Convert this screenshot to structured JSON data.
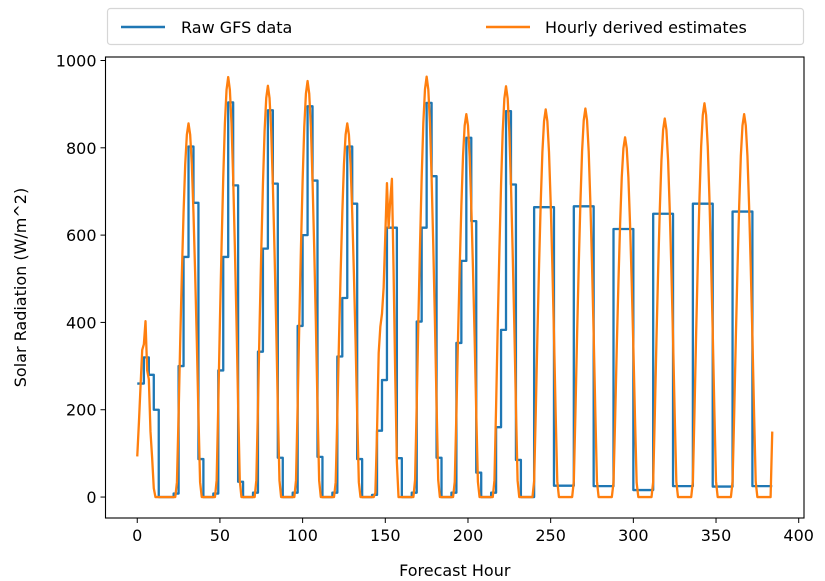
{
  "chart_data": {
    "type": "line",
    "title": "",
    "xlabel": "Forecast Hour",
    "ylabel": "Solar Radiation (W/m^2)",
    "xlim": [
      -19.2,
      403.2
    ],
    "ylim": [
      -48,
      1008
    ],
    "xticks": [
      0,
      50,
      100,
      150,
      200,
      250,
      300,
      350,
      400
    ],
    "yticks": [
      0,
      200,
      400,
      600,
      800,
      1000
    ],
    "grid": false,
    "legend_placement": "top (above axes)",
    "series": [
      {
        "name": "Raw GFS data",
        "color": "#1f77b4",
        "drawstyle": "steps-post",
        "points": [
          [
            0,
            260
          ],
          [
            4,
            320
          ],
          [
            7,
            280
          ],
          [
            10,
            200
          ],
          [
            13,
            0
          ],
          [
            22,
            8
          ],
          [
            25,
            300
          ],
          [
            28,
            550
          ],
          [
            31,
            803
          ],
          [
            34,
            674
          ],
          [
            37,
            87
          ],
          [
            40,
            0
          ],
          [
            46,
            8
          ],
          [
            49,
            290
          ],
          [
            52,
            550
          ],
          [
            55,
            904
          ],
          [
            58,
            714
          ],
          [
            61,
            35
          ],
          [
            64,
            0
          ],
          [
            70,
            10
          ],
          [
            73,
            333
          ],
          [
            76,
            569
          ],
          [
            79,
            886
          ],
          [
            82,
            718
          ],
          [
            85,
            90
          ],
          [
            88,
            0
          ],
          [
            94,
            10
          ],
          [
            97,
            392
          ],
          [
            100,
            600
          ],
          [
            103,
            895
          ],
          [
            106,
            725
          ],
          [
            109,
            92
          ],
          [
            112,
            0
          ],
          [
            118,
            10
          ],
          [
            121,
            322
          ],
          [
            124,
            456
          ],
          [
            127,
            803
          ],
          [
            130,
            672
          ],
          [
            133,
            87
          ],
          [
            136,
            0
          ],
          [
            142,
            5
          ],
          [
            145,
            152
          ],
          [
            148,
            268
          ],
          [
            151,
            617
          ],
          [
            157,
            89
          ],
          [
            160,
            0
          ],
          [
            166,
            10
          ],
          [
            169,
            402
          ],
          [
            172,
            617
          ],
          [
            175,
            903
          ],
          [
            178,
            735
          ],
          [
            181,
            90
          ],
          [
            184,
            0
          ],
          [
            190,
            10
          ],
          [
            193,
            353
          ],
          [
            196,
            541
          ],
          [
            199,
            823
          ],
          [
            202,
            632
          ],
          [
            205,
            56
          ],
          [
            208,
            0
          ],
          [
            214,
            10
          ],
          [
            217,
            160
          ],
          [
            220,
            383
          ],
          [
            223,
            884
          ],
          [
            226,
            716
          ],
          [
            229,
            85
          ],
          [
            232,
            0
          ],
          [
            240,
            664
          ],
          [
            252,
            26
          ],
          [
            264,
            666
          ],
          [
            276,
            25
          ],
          [
            288,
            614
          ],
          [
            300,
            16
          ],
          [
            312,
            649
          ],
          [
            324,
            25
          ],
          [
            336,
            672
          ],
          [
            348,
            24
          ],
          [
            360,
            654
          ],
          [
            372,
            25
          ],
          [
            384,
            25
          ]
        ]
      },
      {
        "name": "Hourly derived estimates",
        "color": "#ff7f0e",
        "x": [
          0,
          1,
          2,
          3,
          4,
          5,
          6,
          7,
          8,
          9,
          10,
          11,
          12,
          13,
          14,
          15,
          16,
          17,
          18,
          19,
          20,
          21,
          22,
          23,
          24,
          25,
          26,
          27,
          28,
          29,
          30,
          31,
          32,
          33,
          34,
          35,
          36,
          37,
          38,
          39,
          40,
          41,
          42,
          43,
          44,
          45,
          46,
          47,
          48,
          49,
          50,
          51,
          52,
          53,
          54,
          55,
          56,
          57,
          58,
          59,
          60,
          61,
          62,
          63,
          64,
          65,
          66,
          67,
          68,
          69,
          70,
          71,
          72,
          73,
          74,
          75,
          76,
          77,
          78,
          79,
          80,
          81,
          82,
          83,
          84,
          85,
          86,
          87,
          88,
          89,
          90,
          91,
          92,
          93,
          94,
          95,
          96,
          97,
          98,
          99,
          100,
          101,
          102,
          103,
          104,
          105,
          106,
          107,
          108,
          109,
          110,
          111,
          112,
          113,
          114,
          115,
          116,
          117,
          118,
          119,
          120,
          121,
          122,
          123,
          124,
          125,
          126,
          127,
          128,
          129,
          130,
          131,
          132,
          133,
          134,
          135,
          136,
          137,
          138,
          139,
          140,
          141,
          142,
          143,
          144,
          145,
          146,
          147,
          148,
          149,
          150,
          151,
          152,
          153,
          154,
          155,
          156,
          157,
          158,
          159,
          160,
          161,
          162,
          163,
          164,
          165,
          166,
          167,
          168,
          169,
          170,
          171,
          172,
          173,
          174,
          175,
          176,
          177,
          178,
          179,
          180,
          181,
          182,
          183,
          184,
          185,
          186,
          187,
          188,
          189,
          190,
          191,
          192,
          193,
          194,
          195,
          196,
          197,
          198,
          199,
          200,
          201,
          202,
          203,
          204,
          205,
          206,
          207,
          208,
          209,
          210,
          211,
          212,
          213,
          214,
          215,
          216,
          217,
          218,
          219,
          220,
          221,
          222,
          223,
          224,
          225,
          226,
          227,
          228,
          229,
          230,
          231,
          232,
          233,
          234,
          235,
          236,
          237,
          238,
          239,
          240,
          241,
          242,
          243,
          244,
          245,
          246,
          247,
          248,
          249,
          250,
          251,
          252,
          253,
          254,
          255,
          256,
          257,
          258,
          259,
          260,
          261,
          262,
          263,
          264,
          265,
          266,
          267,
          268,
          269,
          270,
          271,
          272,
          273,
          274,
          275,
          276,
          277,
          278,
          279,
          280,
          281,
          282,
          283,
          284,
          285,
          286,
          287,
          288,
          289,
          290,
          291,
          292,
          293,
          294,
          295,
          296,
          297,
          298,
          299,
          300,
          301,
          302,
          303,
          304,
          305,
          306,
          307,
          308,
          309,
          310,
          311,
          312,
          313,
          314,
          315,
          316,
          317,
          318,
          319,
          320,
          321,
          322,
          323,
          324,
          325,
          326,
          327,
          328,
          329,
          330,
          331,
          332,
          333,
          334,
          335,
          336,
          337,
          338,
          339,
          340,
          341,
          342,
          343,
          344,
          345,
          346,
          347,
          348,
          349,
          350,
          351,
          352,
          353,
          354,
          355,
          356,
          357,
          358,
          359,
          360,
          361,
          362,
          363,
          364,
          365,
          366,
          367,
          368,
          369,
          370,
          371,
          372,
          373,
          374,
          375,
          376,
          377,
          378,
          379,
          380,
          381,
          382,
          383,
          384
        ],
        "y": [
          93,
          170,
          255,
          337,
          350,
          403,
          290,
          270,
          150,
          90,
          20,
          0,
          0,
          0,
          0,
          0,
          0,
          0,
          0,
          0,
          0,
          0,
          0,
          0,
          34,
          188,
          360,
          514,
          651,
          762,
          830,
          856,
          830,
          762,
          651,
          514,
          360,
          188,
          34,
          0,
          0,
          0,
          0,
          0,
          0,
          0,
          0,
          0,
          38,
          212,
          404,
          577,
          731,
          856,
          933,
          962,
          933,
          856,
          731,
          577,
          404,
          212,
          38,
          0,
          0,
          0,
          0,
          0,
          0,
          0,
          0,
          0,
          38,
          207,
          396,
          565,
          716,
          838,
          914,
          942,
          914,
          838,
          716,
          565,
          396,
          207,
          38,
          0,
          0,
          0,
          0,
          0,
          0,
          0,
          0,
          0,
          38,
          210,
          400,
          572,
          724,
          848,
          924,
          953,
          924,
          848,
          724,
          572,
          400,
          210,
          38,
          0,
          0,
          0,
          0,
          0,
          0,
          0,
          0,
          0,
          34,
          188,
          360,
          514,
          651,
          762,
          830,
          856,
          830,
          762,
          651,
          514,
          360,
          188,
          34,
          0,
          0,
          0,
          0,
          0,
          0,
          0,
          0,
          0,
          10,
          150,
          330,
          390,
          420,
          480,
          600,
          719,
          617,
          680,
          729,
          520,
          280,
          80,
          0,
          0,
          0,
          0,
          0,
          0,
          0,
          0,
          0,
          0,
          39,
          212,
          404,
          578,
          732,
          857,
          934,
          963,
          934,
          857,
          732,
          578,
          404,
          212,
          39,
          0,
          0,
          0,
          0,
          0,
          0,
          0,
          0,
          0,
          35,
          193,
          368,
          526,
          667,
          781,
          851,
          877,
          851,
          781,
          667,
          526,
          368,
          193,
          35,
          0,
          0,
          0,
          0,
          0,
          0,
          0,
          0,
          0,
          38,
          207,
          395,
          565,
          715,
          837,
          913,
          941,
          913,
          837,
          715,
          565,
          395,
          207,
          38,
          0,
          0,
          0,
          0,
          0,
          0,
          0,
          0,
          0,
          36,
          195,
          373,
          533,
          675,
          790,
          861,
          888,
          861,
          790,
          675,
          533,
          373,
          195,
          36,
          0,
          0,
          0,
          0,
          0,
          0,
          0,
          0,
          0,
          36,
          196,
          374,
          534,
          676,
          792,
          863,
          890,
          863,
          792,
          676,
          534,
          374,
          196,
          36,
          0,
          0,
          0,
          0,
          0,
          0,
          0,
          0,
          0,
          33,
          181,
          346,
          494,
          626,
          733,
          799,
          824,
          799,
          733,
          626,
          494,
          346,
          181,
          33,
          0,
          0,
          0,
          0,
          0,
          0,
          0,
          0,
          0,
          35,
          191,
          364,
          520,
          659,
          772,
          841,
          867,
          841,
          772,
          659,
          520,
          364,
          191,
          35,
          0,
          0,
          0,
          0,
          0,
          0,
          0,
          0,
          0,
          36,
          198,
          379,
          541,
          686,
          803,
          875,
          902,
          875,
          803,
          686,
          541,
          379,
          198,
          36,
          0,
          0,
          0,
          0,
          0,
          0,
          0,
          0,
          0,
          35,
          193,
          368,
          526,
          667,
          781,
          851,
          877,
          851,
          781,
          667,
          526,
          368,
          193,
          35,
          0,
          0,
          0,
          0,
          0,
          0,
          0,
          0,
          0,
          150
        ]
      }
    ]
  }
}
